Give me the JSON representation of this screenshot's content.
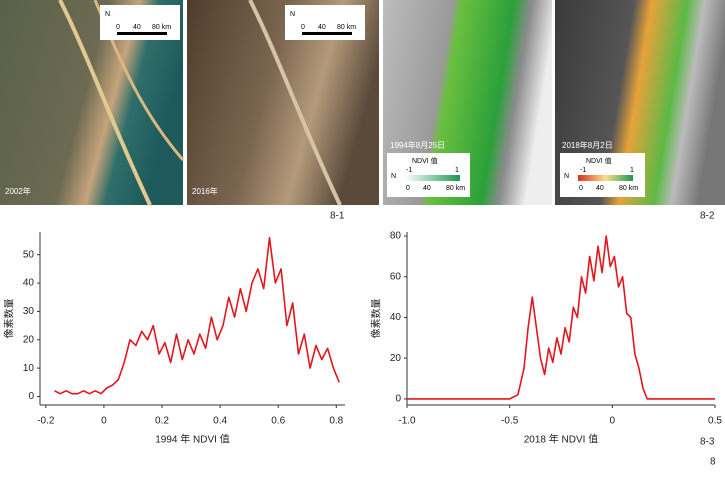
{
  "images": [
    {
      "caption": "2002年",
      "compass": "N",
      "scale": [
        "0",
        "40",
        "80 km"
      ]
    },
    {
      "caption": "2016年",
      "compass": "N",
      "scale": [
        "0",
        "40",
        "80 km"
      ]
    },
    {
      "caption": "1994年8月25日",
      "compass": "N",
      "legend_title": "NDVI 值",
      "legend_range": [
        "-1",
        "1"
      ],
      "scale": [
        "0",
        "40",
        "80 km"
      ]
    },
    {
      "caption": "2018年8月2日",
      "compass": "N",
      "legend_title": "NDVI 值",
      "legend_range": [
        "-1",
        "1"
      ],
      "scale": [
        "0",
        "40",
        "80 km"
      ]
    }
  ],
  "figure_labels": [
    "8-1",
    "8-2",
    "8-3",
    "8"
  ],
  "chart_data": [
    {
      "type": "line",
      "xlabel": "1994 年 NDVI 值",
      "ylabel": "像素数量",
      "color": "#e3161d",
      "x": [
        -0.17,
        -0.15,
        -0.13,
        -0.11,
        -0.09,
        -0.07,
        -0.05,
        -0.03,
        -0.01,
        0.01,
        0.03,
        0.05,
        0.07,
        0.09,
        0.11,
        0.13,
        0.15,
        0.17,
        0.19,
        0.21,
        0.23,
        0.25,
        0.27,
        0.29,
        0.31,
        0.33,
        0.35,
        0.37,
        0.39,
        0.41,
        0.43,
        0.45,
        0.47,
        0.49,
        0.51,
        0.53,
        0.55,
        0.57,
        0.59,
        0.61,
        0.63,
        0.65,
        0.67,
        0.69,
        0.71,
        0.73,
        0.75,
        0.77,
        0.79,
        0.81
      ],
      "values": [
        2,
        1,
        2,
        1,
        1,
        2,
        1,
        2,
        1,
        3,
        4,
        6,
        12,
        20,
        18,
        23,
        20,
        25,
        15,
        19,
        12,
        22,
        13,
        20,
        15,
        22,
        17,
        28,
        20,
        25,
        35,
        28,
        38,
        30,
        40,
        45,
        38,
        56,
        40,
        45,
        25,
        33,
        15,
        22,
        10,
        18,
        13,
        17,
        10,
        5
      ],
      "xlim": [
        -0.22,
        0.83
      ],
      "xticks": [
        -0.2,
        0,
        0.2,
        0.4,
        0.6,
        0.8
      ],
      "ylim": [
        -3,
        58
      ],
      "yticks": [
        0,
        10,
        20,
        30,
        40,
        50
      ]
    },
    {
      "type": "line",
      "xlabel": "2018 年 NDVI 值",
      "ylabel": "像素数量",
      "color": "#e3161d",
      "x": [
        -1.0,
        -0.8,
        -0.6,
        -0.5,
        -0.46,
        -0.43,
        -0.41,
        -0.39,
        -0.37,
        -0.35,
        -0.33,
        -0.31,
        -0.29,
        -0.27,
        -0.25,
        -0.23,
        -0.21,
        -0.19,
        -0.17,
        -0.15,
        -0.13,
        -0.11,
        -0.09,
        -0.07,
        -0.05,
        -0.03,
        -0.01,
        0.01,
        0.03,
        0.05,
        0.07,
        0.09,
        0.11,
        0.13,
        0.15,
        0.17,
        0.3,
        0.5
      ],
      "values": [
        0,
        0,
        0,
        0,
        2,
        15,
        35,
        50,
        35,
        20,
        12,
        25,
        18,
        30,
        22,
        35,
        28,
        45,
        40,
        60,
        52,
        70,
        58,
        75,
        62,
        80,
        65,
        70,
        55,
        60,
        42,
        40,
        22,
        15,
        5,
        0,
        0,
        0
      ],
      "xlim": [
        -1.0,
        0.5
      ],
      "xticks": [
        {
          "value": -1.0,
          "label": "-1.0"
        },
        -0.5,
        0,
        0.5
      ],
      "ylim": [
        -3,
        82
      ],
      "yticks": [
        0,
        20,
        40,
        60,
        80
      ]
    }
  ]
}
